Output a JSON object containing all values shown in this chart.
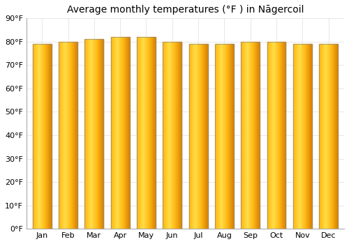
{
  "title": "Average monthly temperatures (°F ) in Nāgercoil",
  "months": [
    "Jan",
    "Feb",
    "Mar",
    "Apr",
    "May",
    "Jun",
    "Jul",
    "Aug",
    "Sep",
    "Oct",
    "Nov",
    "Dec"
  ],
  "values": [
    79,
    80,
    81,
    82,
    82,
    80,
    79,
    79,
    80,
    80,
    79,
    79
  ],
  "bar_color_light": "#FFD84D",
  "bar_color_mid": "#FFAA00",
  "bar_color_dark": "#E88000",
  "bar_edge_color": "#888888",
  "background_color": "#ffffff",
  "plot_bg_color": "#ffffff",
  "ylim": [
    0,
    90
  ],
  "yticks": [
    0,
    10,
    20,
    30,
    40,
    50,
    60,
    70,
    80,
    90
  ],
  "ytick_labels": [
    "0°F",
    "10°F",
    "20°F",
    "30°F",
    "40°F",
    "50°F",
    "60°F",
    "70°F",
    "80°F",
    "90°F"
  ],
  "grid_color": "#dddddd",
  "title_fontsize": 10,
  "tick_fontsize": 8,
  "bar_width": 0.72
}
